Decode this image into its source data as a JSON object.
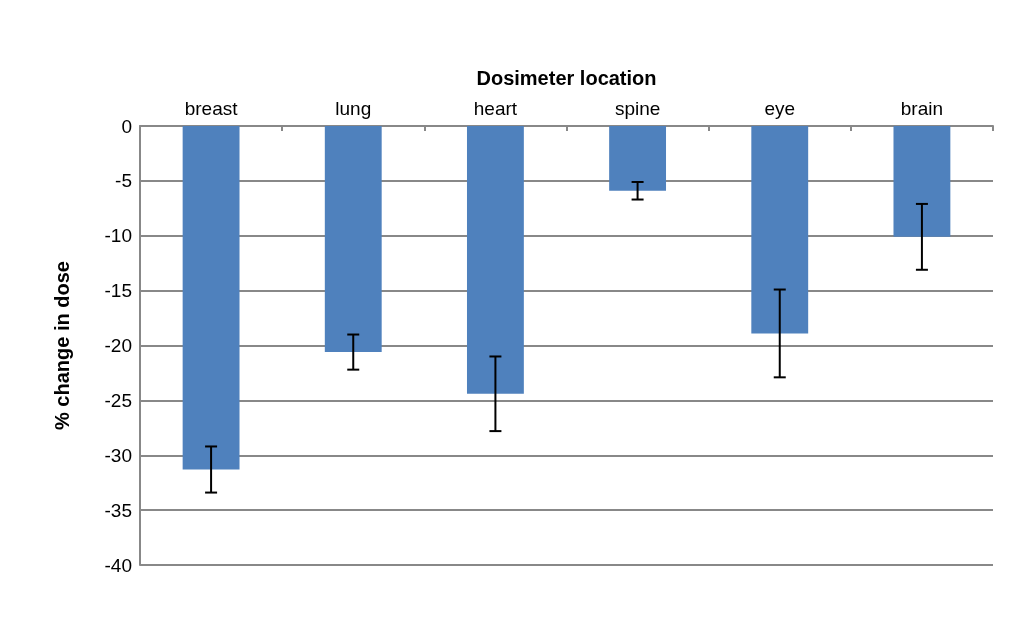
{
  "chart_data": {
    "type": "bar",
    "xlabel": "Dosimeter location",
    "ylabel": "% change in dose",
    "categories": [
      "breast",
      "lung",
      "heart",
      "spine",
      "eye",
      "brain"
    ],
    "values": [
      -31.3,
      -20.6,
      -24.4,
      -5.9,
      -18.9,
      -10.1
    ],
    "errors": [
      2.1,
      1.6,
      3.4,
      0.8,
      4.0,
      3.0
    ],
    "color": "#4f81bd",
    "ylim": [
      -40,
      0
    ],
    "yticks": [
      0,
      -5,
      -10,
      -15,
      -20,
      -25,
      -30,
      -35,
      -40
    ],
    "grid": "y"
  }
}
